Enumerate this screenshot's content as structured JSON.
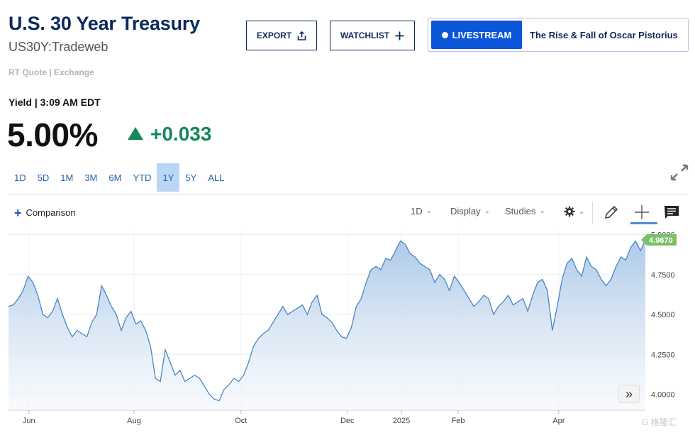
{
  "header": {
    "title": "U.S. 30 Year Treasury",
    "symbol": "US30Y:Tradeweb",
    "quote_source": "RT Quote | Exchange",
    "export_label": "EXPORT",
    "watchlist_label": "WATCHLIST",
    "livestream_label": "LIVESTREAM",
    "livestream_title": "The Rise & Fall of Oscar Pistorius"
  },
  "quote": {
    "yield_label": "Yield | 3:09 AM EDT",
    "value": "5.00%",
    "change": "+0.033",
    "direction": "up",
    "change_color": "#16875a"
  },
  "ranges": [
    {
      "label": "1D",
      "active": false
    },
    {
      "label": "5D",
      "active": false
    },
    {
      "label": "1M",
      "active": false
    },
    {
      "label": "3M",
      "active": false
    },
    {
      "label": "6M",
      "active": false
    },
    {
      "label": "YTD",
      "active": false
    },
    {
      "label": "1Y",
      "active": true
    },
    {
      "label": "5Y",
      "active": false
    },
    {
      "label": "ALL",
      "active": false
    }
  ],
  "toolbar": {
    "comparison_label": "Comparison",
    "interval_label": "1D",
    "display_label": "Display",
    "studies_label": "Studies"
  },
  "icons": {
    "export": "share-icon",
    "watchlist": "plus-icon",
    "expand": "expand-icon",
    "settings": "gear-icon",
    "draw": "pencil-icon",
    "crosshair": "crosshair-icon",
    "news": "comment-icon",
    "scroll": "double-chevron-right-icon"
  },
  "chart_data": {
    "type": "area",
    "x_tick_labels": [
      "Jun",
      "Aug",
      "Oct",
      "Dec",
      "2025",
      "Feb",
      "Apr"
    ],
    "y_tick_labels": [
      "5.0000",
      "4.7500",
      "4.5000",
      "4.2500",
      "4.0000"
    ],
    "ylim": [
      3.9,
      5.02
    ],
    "last_value_label": "4.9670",
    "line_color": "#3c7fc2",
    "fill_color": "#c5d9ee",
    "marker_color": "#7bbf6a",
    "series": [
      {
        "values": [
          4.55,
          4.56,
          4.6,
          4.65,
          4.74,
          4.7,
          4.62,
          4.5,
          4.48,
          4.52,
          4.6,
          4.5,
          4.42,
          4.36,
          4.4,
          4.38,
          4.36,
          4.45,
          4.5,
          4.68,
          4.62,
          4.55,
          4.5,
          4.4,
          4.48,
          4.52,
          4.44,
          4.46,
          4.4,
          4.3,
          4.1,
          4.08,
          4.28,
          4.2,
          4.12,
          4.15,
          4.08,
          4.1,
          4.12,
          4.1,
          4.05,
          4.0,
          3.97,
          3.96,
          4.03,
          4.06,
          4.1,
          4.08,
          4.12,
          4.2,
          4.3,
          4.35,
          4.38,
          4.4,
          4.45,
          4.5,
          4.55,
          4.5,
          4.52,
          4.54,
          4.56,
          4.5,
          4.58,
          4.62,
          4.5,
          4.48,
          4.45,
          4.4,
          4.36,
          4.35,
          4.42,
          4.55,
          4.6,
          4.7,
          4.78,
          4.8,
          4.78,
          4.85,
          4.84,
          4.9,
          4.96,
          4.94,
          4.88,
          4.86,
          4.82,
          4.8,
          4.78,
          4.7,
          4.75,
          4.72,
          4.65,
          4.74,
          4.7,
          4.65,
          4.6,
          4.55,
          4.58,
          4.62,
          4.6,
          4.5,
          4.55,
          4.58,
          4.62,
          4.56,
          4.58,
          4.6,
          4.52,
          4.62,
          4.7,
          4.72,
          4.65,
          4.4,
          4.55,
          4.72,
          4.82,
          4.85,
          4.78,
          4.74,
          4.86,
          4.8,
          4.78,
          4.72,
          4.68,
          4.72,
          4.8,
          4.86,
          4.84,
          4.92,
          4.96,
          4.9,
          4.967
        ]
      }
    ]
  }
}
